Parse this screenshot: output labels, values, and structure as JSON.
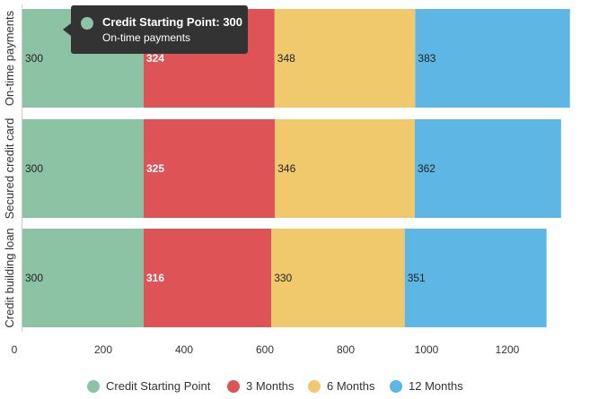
{
  "chart_data": {
    "type": "bar",
    "orientation": "horizontal",
    "stacked": true,
    "categories": [
      "On-time payments",
      "Secured credit card",
      "Credit building loan"
    ],
    "series": [
      {
        "name": "Credit Starting Point",
        "color": "#8cc3a5",
        "values": [
          300,
          300,
          300
        ]
      },
      {
        "name": "3 Months",
        "color": "#de5355",
        "values": [
          324,
          325,
          316
        ]
      },
      {
        "name": "6 Months",
        "color": "#f0c96c",
        "values": [
          348,
          346,
          330
        ]
      },
      {
        "name": "12 Months",
        "color": "#5db6e4",
        "values": [
          383,
          362,
          351
        ]
      }
    ],
    "xlim": [
      0,
      1400
    ],
    "xticks": [
      0,
      200,
      400,
      600,
      800,
      1000,
      1200
    ],
    "grid": false,
    "legend_position": "bottom",
    "tooltip": {
      "title": "Credit Starting Point: 300",
      "subtitle": "On-time payments",
      "color": "#8cc3a5"
    }
  }
}
